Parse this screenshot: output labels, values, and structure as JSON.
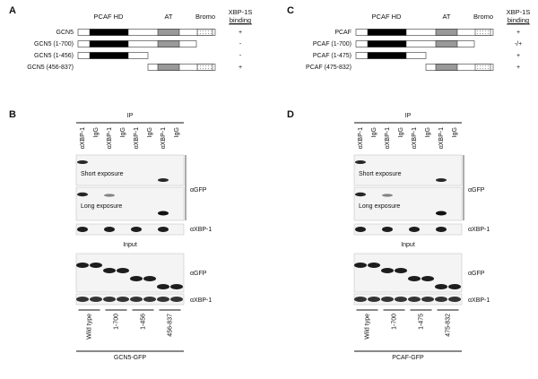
{
  "domain_panels": [
    {
      "label": "A",
      "col_hd": "PCAF HD",
      "col_at": "AT",
      "col_bromo": "Bromo",
      "col_binding_1": "XBP-1S",
      "col_binding_2": "binding",
      "rows": [
        {
          "name": "GCN5",
          "binding": "+"
        },
        {
          "name": "GCN5 (1-700)",
          "binding": "-"
        },
        {
          "name": "GCN5 (1-456)",
          "binding": "-"
        },
        {
          "name": "GCN5 (456-837)",
          "binding": "+"
        }
      ]
    },
    {
      "label": "C",
      "col_hd": "PCAF HD",
      "col_at": "AT",
      "col_bromo": "Bromo",
      "col_binding_1": "XBP-1S",
      "col_binding_2": "binding",
      "rows": [
        {
          "name": "PCAF",
          "binding": "+"
        },
        {
          "name": "PCAF (1-700)",
          "binding": "-/+"
        },
        {
          "name": "PCAF (1-475)",
          "binding": "+"
        },
        {
          "name": "PCAF (475-832)",
          "binding": "+"
        }
      ]
    }
  ],
  "blot_panels": [
    {
      "label": "B",
      "ip": "IP",
      "lanes": [
        "αXBP-1",
        "IgG",
        "αXBP-1",
        "IgG",
        "αXBP-1",
        "IgG",
        "αXBP-1",
        "IgG"
      ],
      "short": "Short exposure",
      "long": "Long exposure",
      "gfp": "αGFP",
      "xbp": "αXBP-1",
      "input": "Input",
      "input_gfp": "αGFP",
      "input_xbp": "αXBP-1",
      "groups": [
        "Wild type",
        "1-700",
        "1-456",
        "456-837"
      ],
      "construct": "GCN5-GFP"
    },
    {
      "label": "D",
      "ip": "IP",
      "lanes": [
        "αXBP-1",
        "IgG",
        "αXBP-1",
        "IgG",
        "αXBP-1",
        "IgG",
        "αXBP-1",
        "IgG"
      ],
      "short": "Short exposure",
      "long": "Long exposure",
      "gfp": "αGFP",
      "xbp": "αXBP-1",
      "input": "Input",
      "input_gfp": "αGFP",
      "input_xbp": "αXBP-1",
      "groups": [
        "Wild type",
        "1-700",
        "1-475",
        "475-832"
      ],
      "construct": "PCAF-GFP"
    }
  ]
}
